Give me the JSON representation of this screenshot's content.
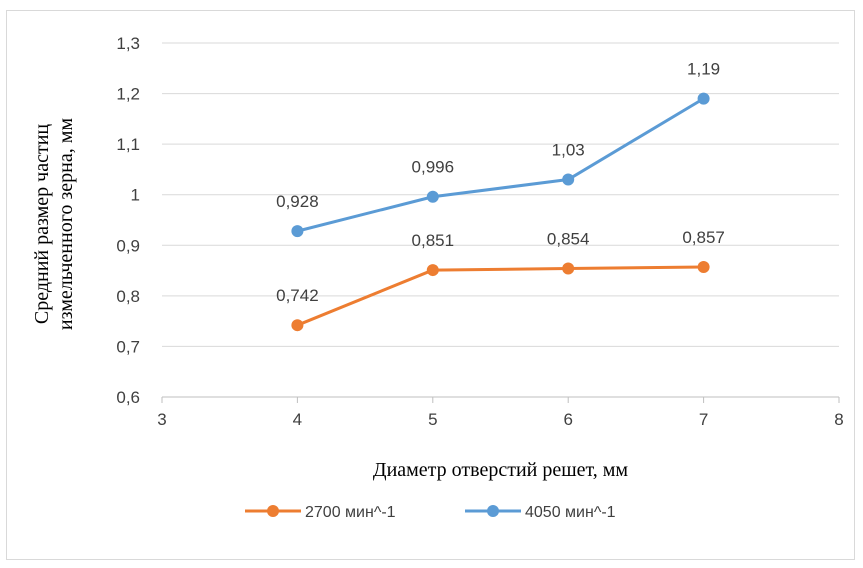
{
  "chart_data": {
    "type": "line",
    "title": "",
    "xlabel": "Диаметр отверстий решет, мм",
    "ylabel_lines": [
      "Средний размер частиц",
      "измельченного зерна, мм"
    ],
    "xlim": [
      3,
      8
    ],
    "ylim": [
      0.6,
      1.3
    ],
    "x_ticks": [
      "3",
      "4",
      "5",
      "6",
      "7",
      "8"
    ],
    "y_ticks": [
      "0,6",
      "0,7",
      "0,8",
      "0,9",
      "1",
      "1,1",
      "1,2",
      "1,3"
    ],
    "grid": "horizontal",
    "legend_position": "bottom",
    "series": [
      {
        "name": "2700 мин^-1",
        "color": "#ED7D31",
        "x": [
          4,
          5,
          6,
          7
        ],
        "values": [
          0.742,
          0.851,
          0.854,
          0.857
        ],
        "labels": [
          "0,742",
          "0,851",
          "0,854",
          "0,857"
        ]
      },
      {
        "name": "4050 мин^-1",
        "color": "#5B9BD5",
        "x": [
          4,
          5,
          6,
          7
        ],
        "values": [
          0.928,
          0.996,
          1.03,
          1.19
        ],
        "labels": [
          "0,928",
          "0,996",
          "1,03",
          "1,19"
        ]
      }
    ]
  }
}
